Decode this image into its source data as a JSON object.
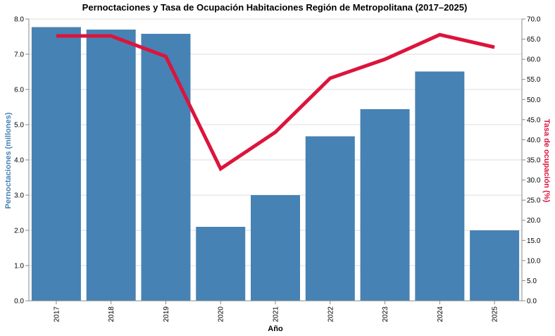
{
  "colors": {
    "bars": "#4682b4",
    "line": "#dc143c"
  },
  "chart_data": {
    "type": "bar",
    "title": "Pernoctaciones y Tasa de Ocupación Habitaciones Región de Metropolitana (2017–2025)",
    "xlabel": "Año",
    "ylabel_left": "Pernoctaciones (millones)",
    "ylabel_right": "Tasa de ocupación (%)",
    "categories": [
      "2017",
      "2018",
      "2019",
      "2020",
      "2021",
      "2022",
      "2023",
      "2024",
      "2025"
    ],
    "series": [
      {
        "name": "Pernoctaciones (millones)",
        "type": "bar",
        "axis": "left",
        "values": [
          7.77,
          7.7,
          7.58,
          2.1,
          3.0,
          4.67,
          5.44,
          6.51,
          2.0
        ]
      },
      {
        "name": "Tasa de ocupación (%)",
        "type": "line",
        "axis": "right",
        "values": [
          65.8,
          65.8,
          60.7,
          32.8,
          41.9,
          55.3,
          60.0,
          66.1,
          63.0
        ]
      }
    ],
    "ylim_left": [
      0,
      8
    ],
    "ylim_right": [
      0,
      70
    ],
    "yticks_left": [
      "0.0",
      "1.0",
      "2.0",
      "3.0",
      "4.0",
      "5.0",
      "6.0",
      "7.0",
      "8.0"
    ],
    "yticks_right": [
      "0.0",
      "5.0",
      "10.0",
      "15.0",
      "20.0",
      "25.0",
      "30.0",
      "35.0",
      "40.0",
      "45.0",
      "50.0",
      "55.0",
      "60.0",
      "65.0",
      "70.0"
    ],
    "grid": true,
    "legend": "none"
  }
}
